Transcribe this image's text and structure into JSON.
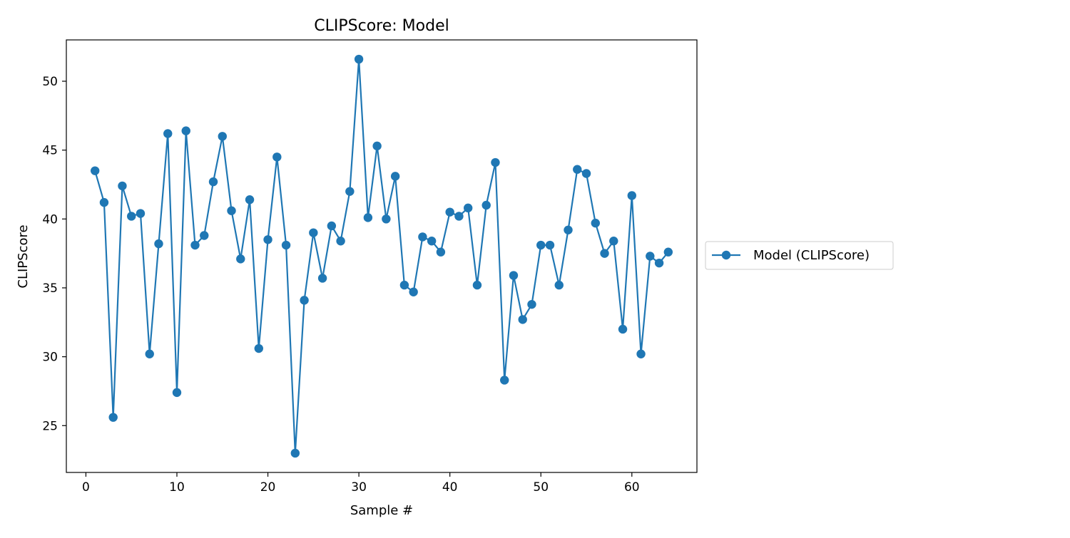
{
  "chart_data": {
    "type": "line",
    "title": "CLIPScore: Model",
    "xlabel": "Sample #",
    "ylabel": "CLIPScore",
    "xlim": [
      -2.15,
      67.15
    ],
    "ylim": [
      21.6,
      53.0
    ],
    "xticks": [
      0,
      10,
      20,
      30,
      40,
      50,
      60
    ],
    "yticks": [
      25,
      30,
      35,
      40,
      45,
      50
    ],
    "grid": false,
    "legend_position": "center-left-outside",
    "series": [
      {
        "name": "Model (CLIPScore)",
        "color": "#1f77b4",
        "marker": "circle",
        "x": [
          1,
          2,
          3,
          4,
          5,
          6,
          7,
          8,
          9,
          10,
          11,
          12,
          13,
          14,
          15,
          16,
          17,
          18,
          19,
          20,
          21,
          22,
          23,
          24,
          25,
          26,
          27,
          28,
          29,
          30,
          31,
          32,
          33,
          34,
          35,
          36,
          37,
          38,
          39,
          40,
          41,
          42,
          43,
          44,
          45,
          46,
          47,
          48,
          49,
          50,
          51,
          52,
          53,
          54,
          55,
          56,
          57,
          58,
          59,
          60,
          61,
          62,
          63,
          64
        ],
        "y": [
          43.5,
          41.2,
          25.6,
          42.4,
          40.2,
          40.4,
          30.2,
          38.2,
          46.2,
          27.4,
          46.4,
          38.1,
          38.8,
          42.7,
          46.0,
          40.6,
          37.1,
          41.4,
          30.6,
          38.5,
          44.5,
          38.1,
          23.0,
          34.1,
          39.0,
          35.7,
          39.5,
          38.4,
          42.0,
          51.6,
          40.1,
          45.3,
          40.0,
          43.1,
          35.2,
          34.7,
          38.7,
          38.4,
          37.6,
          40.5,
          40.2,
          40.8,
          35.2,
          41.0,
          44.1,
          28.3,
          35.9,
          32.7,
          33.8,
          38.1,
          38.1,
          35.2,
          39.2,
          43.6,
          43.3,
          39.7,
          37.5,
          38.4,
          32.0,
          41.7,
          30.2,
          37.3,
          36.8,
          37.6
        ]
      }
    ]
  }
}
